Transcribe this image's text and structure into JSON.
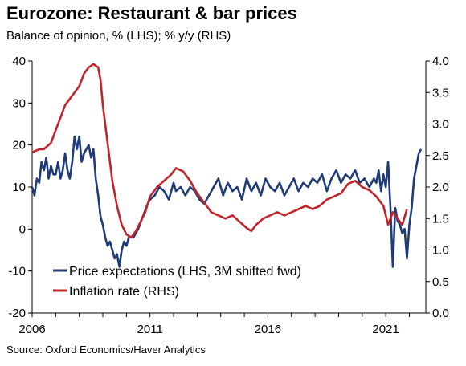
{
  "title": "Eurozone: Restaurant & bar prices",
  "subtitle": "Balance of opinion, % (LHS); % y/y (RHS)",
  "source": "Source: Oxford Economics/Haver Analytics",
  "chart_data": {
    "type": "line",
    "title": "Eurozone: Restaurant & bar prices",
    "subtitle": "Balance of opinion, % (LHS); % y/y (RHS)",
    "x_ticks": [
      "2006",
      "2011",
      "2016",
      "2021"
    ],
    "x_range": [
      2006,
      2022.7
    ],
    "y_left": {
      "range": [
        -20,
        40
      ],
      "ticks": [
        "-20",
        "-10",
        "0",
        "10",
        "20",
        "30",
        "40"
      ]
    },
    "y_right": {
      "range": [
        0.0,
        4.0
      ],
      "ticks": [
        "0.0",
        "0.5",
        "1.0",
        "1.5",
        "2.0",
        "2.5",
        "3.0",
        "3.5",
        "4.0"
      ]
    },
    "grid": false,
    "legend_position": "bottom-left",
    "colors": {
      "series1": "#1f3c78",
      "series2": "#c0252a"
    },
    "series": [
      {
        "name": "Price expectations (LHS, 3M shifted fwd)",
        "axis": "left",
        "color": "#1f3c78",
        "x": [
          2006.0,
          2006.1,
          2006.2,
          2006.3,
          2006.4,
          2006.5,
          2006.6,
          2006.7,
          2006.8,
          2006.9,
          2007.0,
          2007.1,
          2007.2,
          2007.3,
          2007.4,
          2007.5,
          2007.6,
          2007.7,
          2007.8,
          2007.9,
          2008.0,
          2008.1,
          2008.2,
          2008.3,
          2008.4,
          2008.5,
          2008.6,
          2008.7,
          2008.8,
          2008.9,
          2009.0,
          2009.1,
          2009.2,
          2009.3,
          2009.4,
          2009.5,
          2009.6,
          2009.7,
          2009.8,
          2009.9,
          2010.0,
          2010.1,
          2010.3,
          2010.5,
          2010.7,
          2010.9,
          2011.0,
          2011.2,
          2011.4,
          2011.6,
          2011.8,
          2012.0,
          2012.1,
          2012.3,
          2012.5,
          2012.7,
          2012.9,
          2013.1,
          2013.3,
          2013.5,
          2013.7,
          2013.9,
          2014.1,
          2014.3,
          2014.5,
          2014.7,
          2014.9,
          2015.1,
          2015.3,
          2015.5,
          2015.7,
          2015.9,
          2016.1,
          2016.3,
          2016.5,
          2016.7,
          2016.9,
          2017.1,
          2017.3,
          2017.5,
          2017.7,
          2017.9,
          2018.1,
          2018.3,
          2018.5,
          2018.7,
          2018.9,
          2019.1,
          2019.3,
          2019.5,
          2019.7,
          2019.9,
          2020.1,
          2020.3,
          2020.5,
          2020.6,
          2020.7,
          2020.8,
          2020.9,
          2021.0,
          2021.1,
          2021.2,
          2021.3,
          2021.4,
          2021.5,
          2021.6,
          2021.7,
          2021.8,
          2021.9,
          2022.0,
          2022.1,
          2022.2,
          2022.3,
          2022.4,
          2022.5
        ],
        "values": [
          10,
          8,
          12,
          11,
          16,
          14,
          17,
          12,
          15,
          13,
          13,
          16,
          12,
          14,
          18,
          14,
          12,
          16,
          22,
          19,
          22,
          16,
          18,
          19,
          20,
          17,
          19,
          12,
          8,
          3,
          1,
          -2,
          -4,
          -3,
          -5,
          -7,
          -6,
          -9,
          -5,
          -3,
          -4,
          -2,
          -2,
          0,
          3,
          6,
          7,
          8,
          10,
          9,
          7,
          11,
          9,
          10,
          8,
          10,
          9,
          7,
          6,
          8,
          10,
          12,
          8,
          11,
          9,
          10,
          7,
          12,
          9,
          11,
          8,
          12,
          10,
          9,
          11,
          8,
          10,
          12,
          9,
          11,
          10,
          12,
          11,
          13,
          9,
          12,
          14,
          11,
          13,
          12,
          14,
          11,
          12,
          10,
          12,
          11,
          14,
          9,
          13,
          10,
          16,
          5,
          -9,
          5,
          2,
          1,
          -1,
          0,
          -7,
          1,
          5,
          12,
          15,
          18,
          19
        ]
      },
      {
        "name": "Inflation rate (RHS)",
        "axis": "right",
        "color": "#c0252a",
        "x": [
          2006.0,
          2006.3,
          2006.5,
          2006.8,
          2007.0,
          2007.2,
          2007.4,
          2007.6,
          2007.8,
          2008.0,
          2008.2,
          2008.4,
          2008.6,
          2008.8,
          2008.9,
          2009.0,
          2009.2,
          2009.4,
          2009.6,
          2009.8,
          2010.0,
          2010.2,
          2010.4,
          2010.6,
          2010.8,
          2011.0,
          2011.3,
          2011.6,
          2011.9,
          2012.1,
          2012.4,
          2012.7,
          2013.0,
          2013.3,
          2013.6,
          2013.9,
          2014.2,
          2014.5,
          2014.8,
          2015.1,
          2015.3,
          2015.5,
          2015.8,
          2016.1,
          2016.4,
          2016.7,
          2017.0,
          2017.3,
          2017.6,
          2017.9,
          2018.2,
          2018.5,
          2018.8,
          2019.1,
          2019.4,
          2019.7,
          2020.0,
          2020.3,
          2020.6,
          2020.9,
          2021.1,
          2021.3,
          2021.5,
          2021.7,
          2021.9
        ],
        "values": [
          2.55,
          2.6,
          2.6,
          2.7,
          2.9,
          3.1,
          3.3,
          3.4,
          3.5,
          3.6,
          3.8,
          3.9,
          3.95,
          3.9,
          3.7,
          3.3,
          2.7,
          2.1,
          1.7,
          1.4,
          1.25,
          1.2,
          1.3,
          1.45,
          1.6,
          1.85,
          2.0,
          2.1,
          2.2,
          2.3,
          2.25,
          2.1,
          1.9,
          1.75,
          1.6,
          1.55,
          1.5,
          1.55,
          1.45,
          1.35,
          1.3,
          1.4,
          1.5,
          1.55,
          1.6,
          1.55,
          1.6,
          1.65,
          1.7,
          1.65,
          1.7,
          1.8,
          1.85,
          1.9,
          2.05,
          2.1,
          2.0,
          1.95,
          1.85,
          1.7,
          1.4,
          1.6,
          1.5,
          1.4,
          1.65
        ]
      }
    ]
  }
}
